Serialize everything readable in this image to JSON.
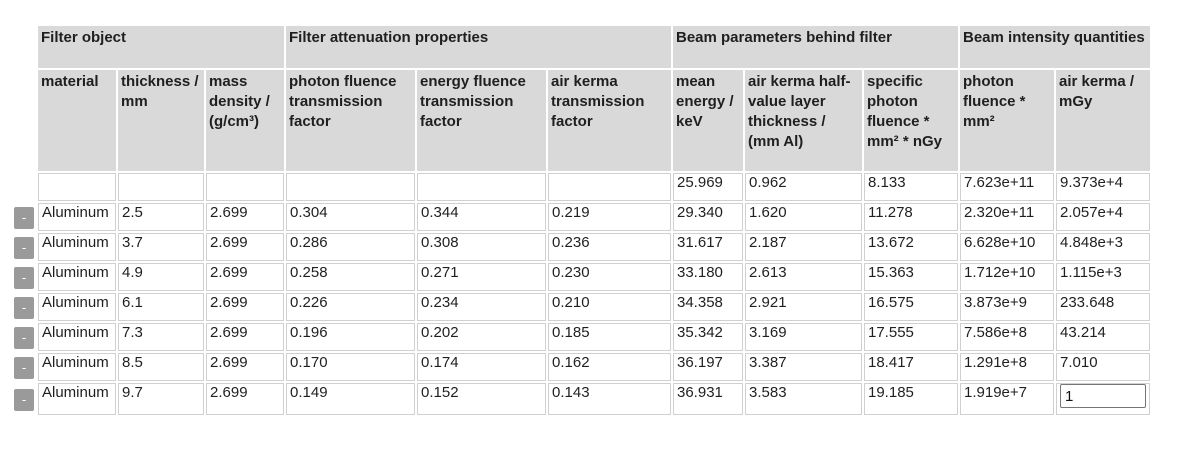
{
  "groups": [
    {
      "label": "Filter object"
    },
    {
      "label": "Filter attenuation properties"
    },
    {
      "label": "Beam parameters behind filter"
    },
    {
      "label": "Beam intensity quantities"
    }
  ],
  "columns": [
    "material",
    "thickness / mm",
    "mass density / (g/cm³)",
    "photon fluence transmission factor",
    "energy fluence transmission factor",
    "air kerma transmission factor",
    "mean energy / keV",
    "air kerma half- value layer thickness / (mm Al)",
    "specific photon fluence * mm² * nGy",
    "photon fluence * mm²",
    "air kerma / mGy"
  ],
  "unfiltered_row": {
    "mean_energy": "25.969",
    "hvl": "0.962",
    "specific_fluence": "8.133",
    "photon_fluence": "7.623e+11",
    "air_kerma": "9.373e+4"
  },
  "remove_label": "-",
  "rows": [
    {
      "material": "Aluminum",
      "thickness": "2.5",
      "density": "2.699",
      "photon_tf": "0.304",
      "energy_tf": "0.344",
      "kerma_tf": "0.219",
      "mean_energy": "29.340",
      "hvl": "1.620",
      "specific_fluence": "11.278",
      "photon_fluence": "2.320e+11",
      "air_kerma": "2.057e+4"
    },
    {
      "material": "Aluminum",
      "thickness": "3.7",
      "density": "2.699",
      "photon_tf": "0.286",
      "energy_tf": "0.308",
      "kerma_tf": "0.236",
      "mean_energy": "31.617",
      "hvl": "2.187",
      "specific_fluence": "13.672",
      "photon_fluence": "6.628e+10",
      "air_kerma": "4.848e+3"
    },
    {
      "material": "Aluminum",
      "thickness": "4.9",
      "density": "2.699",
      "photon_tf": "0.258",
      "energy_tf": "0.271",
      "kerma_tf": "0.230",
      "mean_energy": "33.180",
      "hvl": "2.613",
      "specific_fluence": "15.363",
      "photon_fluence": "1.712e+10",
      "air_kerma": "1.115e+3"
    },
    {
      "material": "Aluminum",
      "thickness": "6.1",
      "density": "2.699",
      "photon_tf": "0.226",
      "energy_tf": "0.234",
      "kerma_tf": "0.210",
      "mean_energy": "34.358",
      "hvl": "2.921",
      "specific_fluence": "16.575",
      "photon_fluence": "3.873e+9",
      "air_kerma": "233.648"
    },
    {
      "material": "Aluminum",
      "thickness": "7.3",
      "density": "2.699",
      "photon_tf": "0.196",
      "energy_tf": "0.202",
      "kerma_tf": "0.185",
      "mean_energy": "35.342",
      "hvl": "3.169",
      "specific_fluence": "17.555",
      "photon_fluence": "7.586e+8",
      "air_kerma": "43.214"
    },
    {
      "material": "Aluminum",
      "thickness": "8.5",
      "density": "2.699",
      "photon_tf": "0.170",
      "energy_tf": "0.174",
      "kerma_tf": "0.162",
      "mean_energy": "36.197",
      "hvl": "3.387",
      "specific_fluence": "18.417",
      "photon_fluence": "1.291e+8",
      "air_kerma": "7.010"
    },
    {
      "material": "Aluminum",
      "thickness": "9.7",
      "density": "2.699",
      "photon_tf": "0.149",
      "energy_tf": "0.152",
      "kerma_tf": "0.143",
      "mean_energy": "36.931",
      "hvl": "3.583",
      "specific_fluence": "19.185",
      "photon_fluence": "1.919e+7",
      "air_kerma_input": "1"
    }
  ]
}
